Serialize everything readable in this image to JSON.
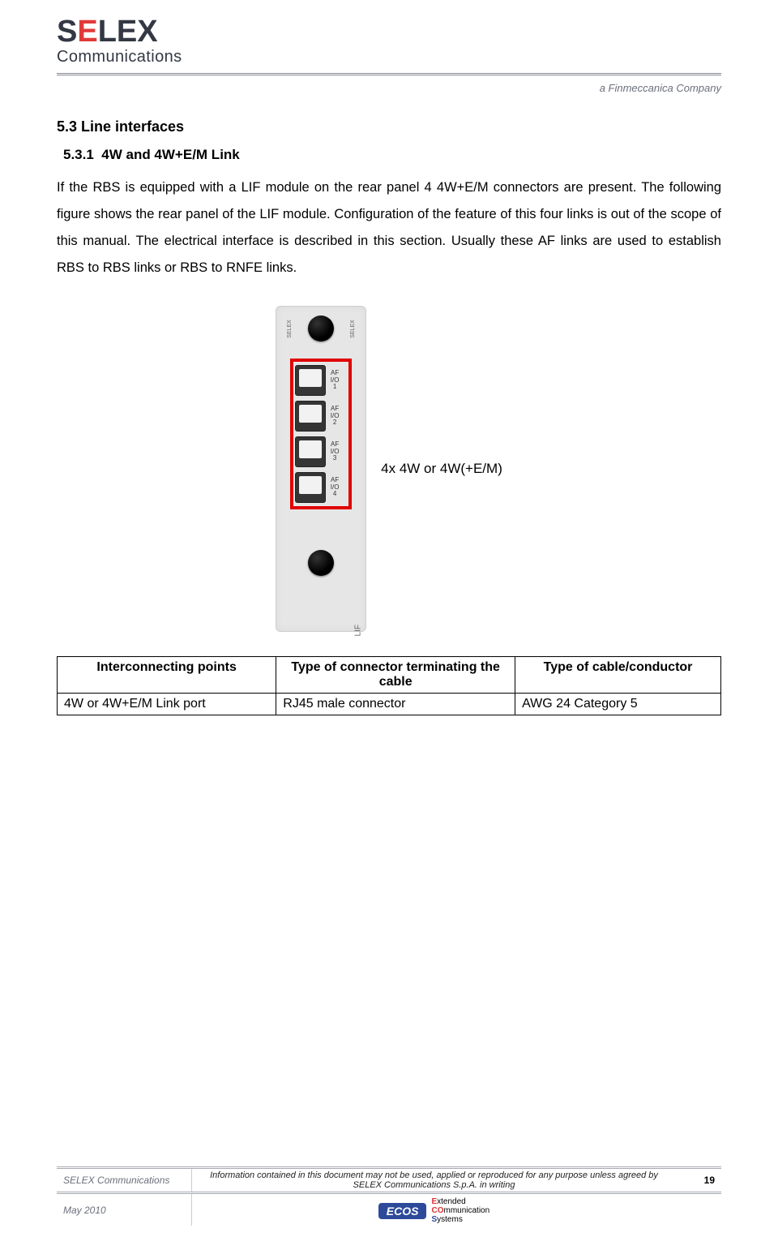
{
  "header": {
    "logo_main_pre": "S",
    "logo_main_e": "E",
    "logo_main_post": "LEX",
    "logo_sub": "Communications",
    "tagline": "a Finmeccanica Company"
  },
  "section": {
    "h1": "5.3 Line interfaces",
    "h2_num": "5.3.1",
    "h2_title": "4W and 4W+E/M Link",
    "paragraph": "If the RBS is equipped with a LIF module on the rear panel 4 4W+E/M connectors are present. The following figure shows the rear panel of the LIF module. Configuration of the feature of this four links is out of the scope of this manual. The electrical interface is described in this section. Usually these AF links are used to establish RBS to RBS links or RBS to RNFE links."
  },
  "figure": {
    "module_brand": "SELEX",
    "ports": [
      {
        "label_line1": "AF",
        "label_line2": "I/O",
        "label_line3": "1"
      },
      {
        "label_line1": "AF",
        "label_line2": "I/O",
        "label_line3": "2"
      },
      {
        "label_line1": "AF",
        "label_line2": "I/O",
        "label_line3": "3"
      },
      {
        "label_line1": "AF",
        "label_line2": "I/O",
        "label_line3": "4"
      }
    ],
    "lif": "LIF",
    "caption": "4x 4W or 4W(+E/M)"
  },
  "table": {
    "headers": [
      "Interconnecting points",
      "Type of connector terminating the cable",
      "Type of cable/conductor"
    ],
    "rows": [
      [
        "4W or 4W+E/M Link port",
        "RJ45 male connector",
        "AWG 24 Category 5"
      ]
    ]
  },
  "footer": {
    "company": "SELEX Communications",
    "disclaimer": "Information contained in this document may not be used, applied or reproduced for any purpose unless agreed by SELEX Communications S.p.A. in writing",
    "date": "May 2010",
    "page": "19",
    "ecos": "ECOS",
    "ecos_e": "E",
    "ecos_e_rest": "xtended",
    "ecos_co": "CO",
    "ecos_co_rest": "mmunication",
    "ecos_s": "S",
    "ecos_s_rest": "ystems"
  }
}
